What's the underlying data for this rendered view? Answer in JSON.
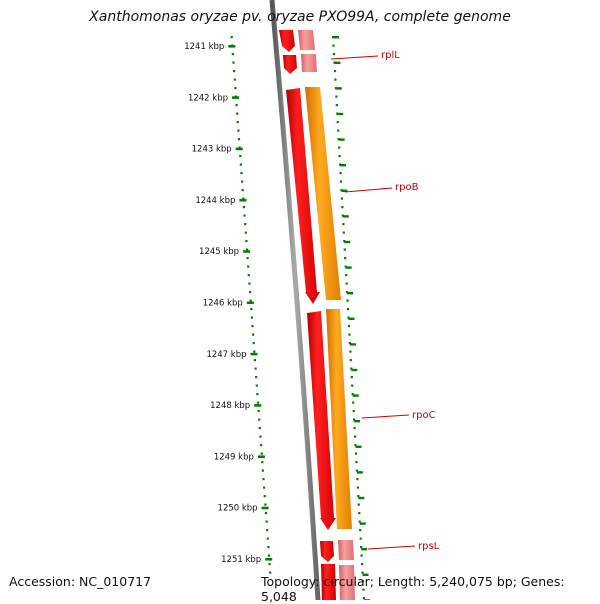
{
  "title": "Xanthomonas oryzae pv. oryzae PXO99A, complete genome",
  "footer": {
    "accession": "Accession: NC_010717",
    "summary": "Topology: circular; Length: 5,240,075 bp; Genes: 5,048"
  },
  "ruler": {
    "unit": "kbp",
    "tick_labels": [
      "1241 kbp",
      "1242 kbp",
      "1243 kbp",
      "1244 kbp",
      "1245 kbp",
      "1246 kbp",
      "1247 kbp",
      "1248 kbp",
      "1249 kbp",
      "1250 kbp",
      "1251 kbp"
    ]
  },
  "genes": [
    {
      "name": "rplL",
      "label": "rplL",
      "color": "#ff0000"
    },
    {
      "name": "rpoB",
      "label": "rpoB",
      "color": "#ff0000"
    },
    {
      "name": "rpoC",
      "label": "rpoC",
      "color": "#ff0000"
    },
    {
      "name": "rpsL",
      "label": "rpsL",
      "color": "#ff0000"
    }
  ],
  "colors": {
    "gene_red": "#ff0000",
    "cds_orange": "#ff9900",
    "pink": "#f08080",
    "ruler_green": "#008000",
    "backbone_gray": "#777777",
    "label_red": "#cc0000"
  }
}
